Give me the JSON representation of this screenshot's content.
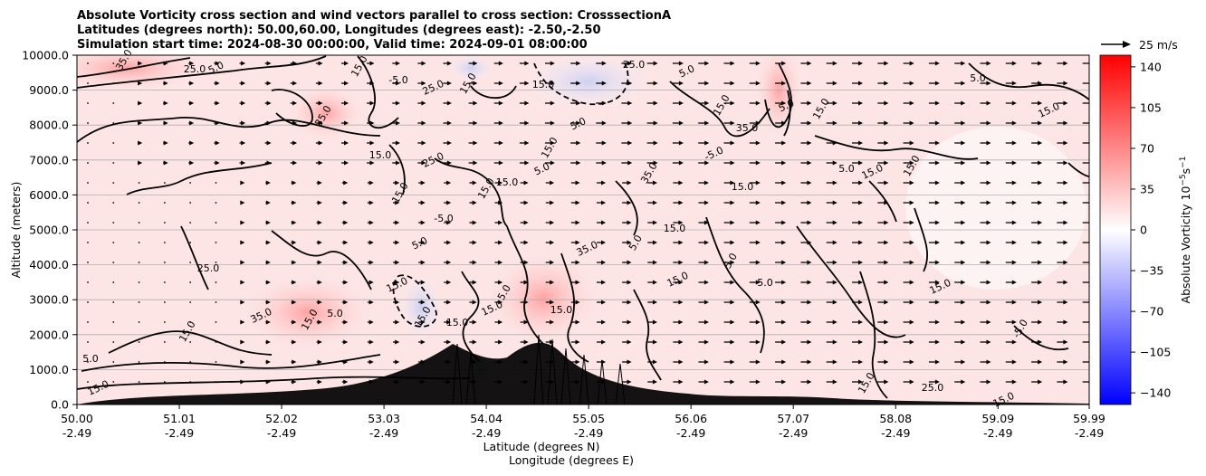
{
  "chart_data": {
    "type": "heatmap",
    "title_lines": [
      "Absolute Vorticity cross section and wind vectors parallel to cross section: CrosssectionA",
      "Latitudes (degrees north): 50.00,60.00, Longitudes (degrees east): -2.50,-2.50",
      "Simulation start time: 2024-08-30 00:00:00, Valid time: 2024-09-01 08:00:00"
    ],
    "ylabel": "Altitude (meters)",
    "xlabel_lat": "Latitude (degrees N)",
    "xlabel_lon": "Longitude (degrees E)",
    "ylim": [
      0,
      10000
    ],
    "y_ticks": [
      "0.0",
      "1000.0",
      "2000.0",
      "3000.0",
      "4000.0",
      "5000.0",
      "6000.0",
      "7000.0",
      "8000.0",
      "9000.0",
      "10000.0"
    ],
    "x_ticks_lat": [
      "50.00",
      "51.01",
      "52.02",
      "53.03",
      "54.04",
      "55.05",
      "56.06",
      "57.07",
      "58.08",
      "59.09",
      "59.99"
    ],
    "x_ticks_lon": [
      "-2.49",
      "-2.49",
      "-2.49",
      "-2.49",
      "-2.49",
      "-2.49",
      "-2.49",
      "-2.49",
      "-2.49",
      "-2.49",
      "-2.49"
    ],
    "colorbar": {
      "label": "Absolute Vorticity 10^-5 s^-1",
      "range": [
        -150,
        150
      ],
      "ticks": [
        "140",
        "105",
        "70",
        "35",
        "0",
        "−35",
        "−70",
        "−105",
        "−140"
      ],
      "colors": {
        "negative": "#0000ff",
        "zero": "#ffffff",
        "positive": "#ff0000"
      }
    },
    "quiver_key": {
      "label": "25 m/s",
      "speed": 25
    },
    "contour_labels": [
      "35.0",
      "25.0",
      "5.0",
      "15.0",
      "-5.0",
      "25.0",
      "15.0",
      "15.0",
      "5.0",
      "35.0",
      "15.0",
      "25.0",
      "15.0",
      "-5.0",
      "5.0",
      "15.0",
      "15.0",
      "5.0",
      "15.0",
      "25.0",
      "5.0",
      "15.0",
      "35.0",
      "-5.0",
      "35.0",
      "15.0",
      "5.0",
      "15.0",
      "5.0",
      "15.0",
      "15.0",
      "5.0",
      "15.0",
      "-5.0",
      "5.0",
      "15.0",
      "15.0",
      "25.0",
      "35.0",
      "15.0",
      "5.0",
      "15.0",
      "15.0",
      "15.0",
      "15.0",
      "5.0",
      "15.0",
      "35.0",
      "5.0",
      "15.0",
      "15.0",
      "5.0",
      "5.0",
      "15.0",
      "15.0",
      "25.0",
      "15.0"
    ]
  }
}
